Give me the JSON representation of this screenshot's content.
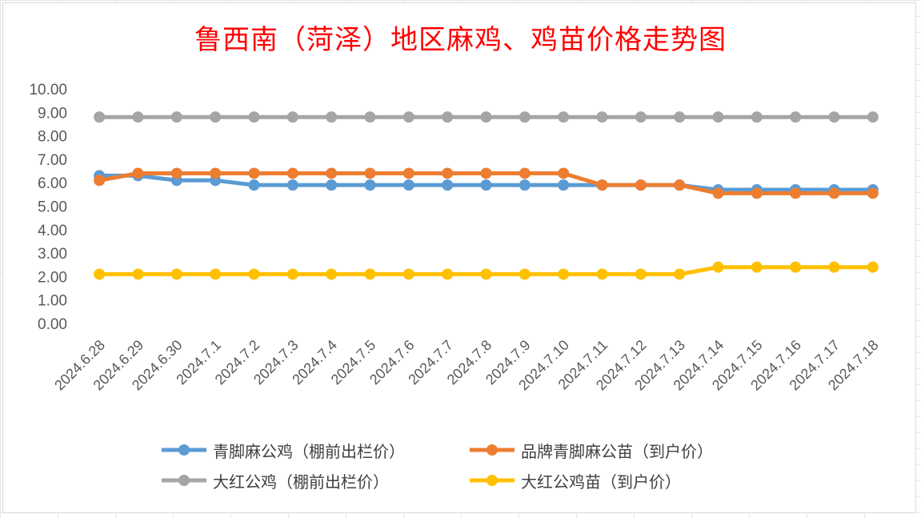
{
  "title": "鲁西南（菏泽）地区麻鸡、鸡苗价格走势图",
  "chart_data": {
    "type": "line",
    "title": "鲁西南（菏泽）地区麻鸡、鸡苗价格走势图",
    "xlabel": "",
    "ylabel": "",
    "ylim": [
      0,
      10
    ],
    "yticks": [
      "0.00",
      "1.00",
      "2.00",
      "3.00",
      "4.00",
      "5.00",
      "6.00",
      "7.00",
      "8.00",
      "9.00",
      "10.00"
    ],
    "grid": false,
    "legend_position": "bottom",
    "categories": [
      "2024.6.28",
      "2024.6.29",
      "2024.6.30",
      "2024.7.1",
      "2024.7.2",
      "2024.7.3",
      "2024.7.4",
      "2024.7.5",
      "2024.7.6",
      "2024.7.7",
      "2024.7.8",
      "2024.7.9",
      "2024.7.10",
      "2024.7.11",
      "2024.7.12",
      "2024.7.13",
      "2024.7.14",
      "2024.7.15",
      "2024.7.16",
      "2024.7.17",
      "2024.7.18"
    ],
    "series": [
      {
        "name": "青脚麻公鸡（棚前出栏价）",
        "color": "#5b9bd5",
        "values": [
          6.3,
          6.3,
          6.1,
          6.1,
          5.9,
          5.9,
          5.9,
          5.9,
          5.9,
          5.9,
          5.9,
          5.9,
          5.9,
          5.9,
          5.9,
          5.9,
          5.7,
          5.7,
          5.7,
          5.7,
          5.7
        ]
      },
      {
        "name": "品牌青脚麻公苗（到户价）",
        "color": "#ed7d31",
        "values": [
          6.1,
          6.4,
          6.4,
          6.4,
          6.4,
          6.4,
          6.4,
          6.4,
          6.4,
          6.4,
          6.4,
          6.4,
          6.4,
          5.9,
          5.9,
          5.9,
          5.55,
          5.55,
          5.55,
          5.55,
          5.55
        ]
      },
      {
        "name": "大红公鸡（棚前出栏价）",
        "color": "#a5a5a5",
        "values": [
          8.8,
          8.8,
          8.8,
          8.8,
          8.8,
          8.8,
          8.8,
          8.8,
          8.8,
          8.8,
          8.8,
          8.8,
          8.8,
          8.8,
          8.8,
          8.8,
          8.8,
          8.8,
          8.8,
          8.8,
          8.8
        ]
      },
      {
        "name": "大红公鸡苗（到户价）",
        "color": "#ffc000",
        "values": [
          2.1,
          2.1,
          2.1,
          2.1,
          2.1,
          2.1,
          2.1,
          2.1,
          2.1,
          2.1,
          2.1,
          2.1,
          2.1,
          2.1,
          2.1,
          2.1,
          2.4,
          2.4,
          2.4,
          2.4,
          2.4
        ]
      }
    ]
  }
}
